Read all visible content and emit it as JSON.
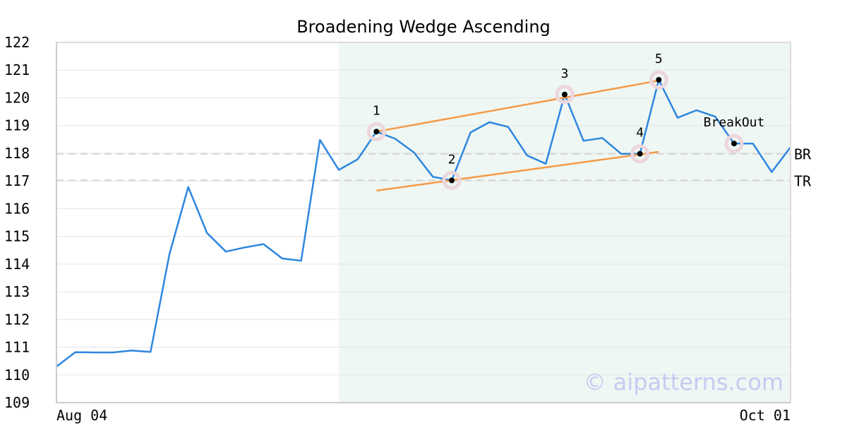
{
  "chart_data": {
    "type": "line",
    "title": "Broadening Wedge Ascending",
    "xlabel": "",
    "ylabel": "",
    "ylim": [
      109,
      122
    ],
    "yticks": [
      109,
      110,
      111,
      112,
      113,
      114,
      115,
      116,
      117,
      118,
      119,
      120,
      121,
      122
    ],
    "xtick_labels": [
      "Aug 04",
      "Oct 01"
    ],
    "grid": true,
    "series": [
      {
        "values": [
          110.3,
          110.82,
          110.81,
          110.81,
          110.88,
          110.83,
          114.35,
          116.78,
          115.12,
          114.45,
          114.6,
          114.72,
          114.2,
          114.12,
          118.48,
          117.4,
          117.78,
          118.78,
          118.52,
          118.02,
          117.15,
          117.02,
          118.75,
          119.12,
          118.95,
          117.92,
          117.62,
          120.12,
          118.45,
          118.55,
          117.98,
          117.98,
          120.65,
          119.28,
          119.55,
          119.32,
          118.35,
          118.35,
          117.32,
          118.22
        ],
        "color": "#2e86e0"
      }
    ],
    "highlight_range": {
      "from_index": 15,
      "to_index": 39,
      "color": "#eef7f3"
    },
    "reference_lines": [
      {
        "label": "BR",
        "y": 117.98
      },
      {
        "label": "TR",
        "y": 117.02
      }
    ],
    "trend_lines": [
      {
        "from": [
          17,
          118.78
        ],
        "to": [
          32,
          120.62
        ],
        "color": "#f59a48"
      },
      {
        "from": [
          17,
          116.65
        ],
        "to": [
          32,
          118.05
        ],
        "color": "#f59a48"
      }
    ],
    "pivots": [
      {
        "label": "1",
        "index": 17,
        "y": 118.78
      },
      {
        "label": "2",
        "index": 21,
        "y": 117.02
      },
      {
        "label": "3",
        "index": 27,
        "y": 120.12
      },
      {
        "label": "4",
        "index": 31,
        "y": 117.98
      },
      {
        "label": "5",
        "index": 32,
        "y": 120.65
      },
      {
        "label": "BreakOut",
        "index": 36,
        "y": 118.35
      }
    ],
    "watermark": "© aipatterns.com"
  }
}
